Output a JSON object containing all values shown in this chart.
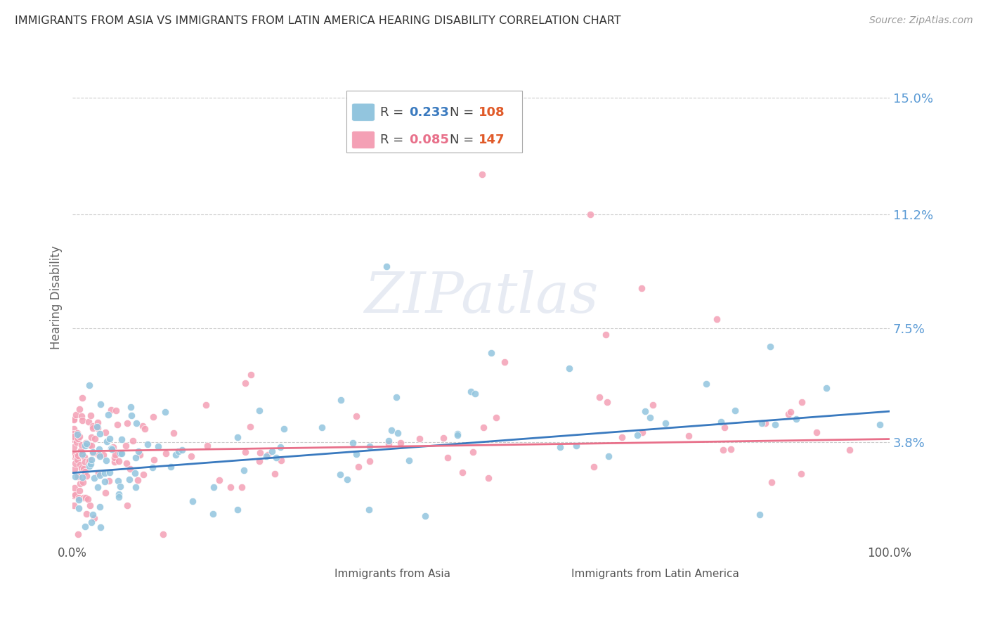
{
  "title": "IMMIGRANTS FROM ASIA VS IMMIGRANTS FROM LATIN AMERICA HEARING DISABILITY CORRELATION CHART",
  "source": "Source: ZipAtlas.com",
  "ylabel": "Hearing Disability",
  "yticks": [
    0.038,
    0.075,
    0.112,
    0.15
  ],
  "ytick_labels": [
    "3.8%",
    "7.5%",
    "11.2%",
    "15.0%"
  ],
  "asia_color": "#92c5de",
  "latin_color": "#f4a0b5",
  "asia_line_color": "#3a7abf",
  "latin_line_color": "#e8708a",
  "background_color": "#ffffff",
  "grid_color": "#cccccc",
  "title_color": "#333333",
  "right_label_color": "#5b9bd5",
  "legend_R_color_asia": "#3a7abf",
  "legend_N_color_asia": "#e05a28",
  "legend_R_color_latin": "#e8708a",
  "legend_N_color_latin": "#e05a28",
  "watermark_color": "#d0d8e8"
}
